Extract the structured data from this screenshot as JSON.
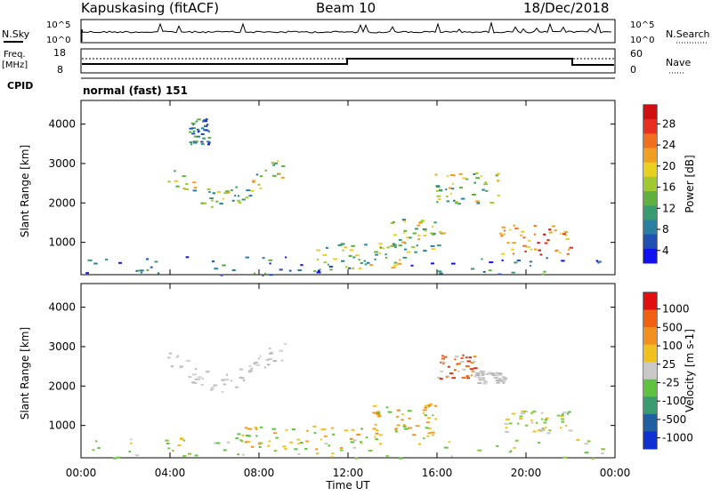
{
  "header": {
    "title": "Kapuskasing (fitACF)",
    "beam": "Beam 10",
    "date": "18/Dec/2018"
  },
  "top_panels": {
    "nsky_label": "N.Sky",
    "nsky_ticks": [
      "10^5",
      "10^0"
    ],
    "nsearch_label": "N.Search",
    "nsearch_ticks": [
      "10^5",
      "10^0"
    ],
    "freq_label": "Freq.",
    "freq_unit": "[MHz]",
    "freq_ticks": [
      "18",
      "8"
    ],
    "nave_label": "Nave",
    "nave_ticks": [
      "60",
      "0"
    ],
    "cpid_label": "CPID",
    "cpid_text": "normal (fast) 151"
  },
  "chart_data": [
    {
      "type": "heatmap",
      "title": "",
      "ylabel": "Slant Range [km]",
      "yticks": [
        "4000",
        "3000",
        "2000",
        "1000"
      ],
      "ylim": [
        180,
        4600
      ],
      "xlim": [
        0,
        24
      ],
      "colorbar": {
        "label": "Power [dB]",
        "ticks": [
          "28",
          "24",
          "20",
          "16",
          "12",
          "8",
          "4"
        ],
        "range": [
          0,
          30
        ],
        "colors": [
          "#1010f0",
          "#2050b0",
          "#2a7fa0",
          "#3a9a70",
          "#60b040",
          "#a0c830",
          "#e8d020",
          "#f0a020",
          "#f07020",
          "#e83020",
          "#d01010"
        ]
      },
      "regions": [
        {
          "t": [
            3.8,
            9.2
          ],
          "r": [
            1750,
            2850
          ],
          "level": "mid",
          "shape": "u-arc"
        },
        {
          "t": [
            4.8,
            5.8
          ],
          "r": [
            3500,
            4200
          ],
          "level": "low"
        },
        {
          "t": [
            13.8,
            16.3
          ],
          "r": [
            750,
            1600
          ],
          "level": "mid"
        },
        {
          "t": [
            15.7,
            18.8
          ],
          "r": [
            2000,
            2800
          ],
          "level": "mid"
        },
        {
          "t": [
            18.8,
            22.0
          ],
          "r": [
            700,
            1450
          ],
          "level": "high"
        },
        {
          "t": [
            0,
            24
          ],
          "r": [
            180,
            650
          ],
          "level": "low"
        },
        {
          "t": [
            10.5,
            14.5
          ],
          "r": [
            350,
            1000
          ],
          "level": "mid"
        }
      ]
    },
    {
      "type": "heatmap",
      "title": "",
      "ylabel": "Slant Range [km]",
      "yticks": [
        "4000",
        "3000",
        "2000",
        "1000"
      ],
      "ylim": [
        180,
        4600
      ],
      "xlim": [
        0,
        24
      ],
      "xlabel": "Time UT",
      "xticks": [
        "00:00",
        "04:00",
        "08:00",
        "12:00",
        "16:00",
        "20:00",
        "00:00"
      ],
      "colorbar": {
        "label": "Velocity [m s-1]",
        "ticks": [
          "1000",
          "500",
          "100",
          "25",
          "-25",
          "-100",
          "-500",
          "-1000"
        ],
        "colors": [
          "#1030d0",
          "#2060a0",
          "#3a9a70",
          "#60c040",
          "#c8c8c8",
          "#f0c020",
          "#f09020",
          "#f06010",
          "#e01010"
        ]
      },
      "regions": [
        {
          "t": [
            3.8,
            9.2
          ],
          "r": [
            1750,
            2850
          ],
          "level": "grey",
          "shape": "u-arc"
        },
        {
          "t": [
            16.0,
            17.7
          ],
          "r": [
            2200,
            2800
          ],
          "level": "red"
        },
        {
          "t": [
            17.7,
            19.0
          ],
          "r": [
            2050,
            2400
          ],
          "level": "grey"
        },
        {
          "t": [
            13.0,
            16.0
          ],
          "r": [
            700,
            1600
          ],
          "level": "orange"
        },
        {
          "t": [
            19.0,
            22.0
          ],
          "r": [
            800,
            1400
          ],
          "level": "grey-green"
        },
        {
          "t": [
            0,
            24
          ],
          "r": [
            180,
            700
          ],
          "level": "green"
        },
        {
          "t": [
            7.0,
            13.5
          ],
          "r": [
            400,
            1000
          ],
          "level": "orange"
        }
      ]
    }
  ],
  "colors": {
    "frame": "#000000",
    "background": "#ffffff"
  }
}
